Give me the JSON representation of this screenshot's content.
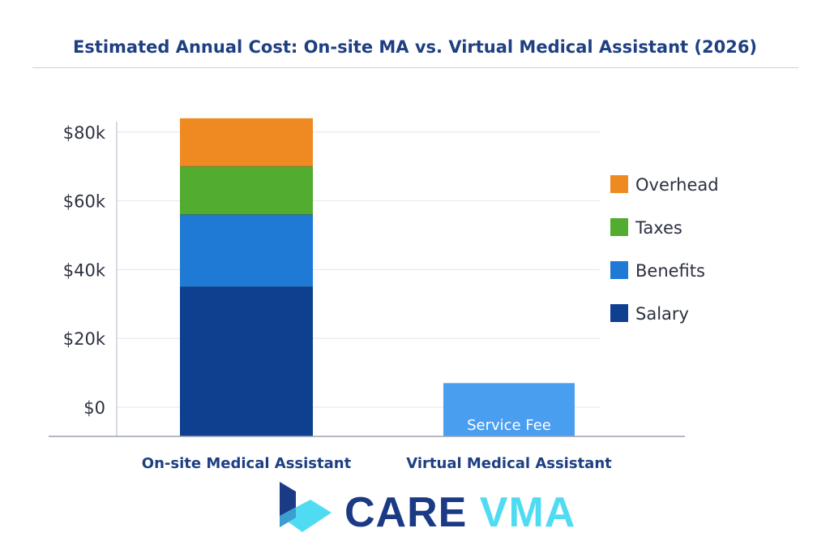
{
  "chart_data": {
    "type": "bar",
    "stacked": true,
    "title": "Estimated Annual Cost: On-site MA vs. Virtual Medical Assistant (2026)",
    "xlabel": "",
    "ylabel": "",
    "categories": [
      "On-site Medical Assistant",
      "Virtual Medical Assistant"
    ],
    "yticks": [
      "$0",
      "$20k",
      "$40k",
      "$60k",
      "$80k"
    ],
    "ytick_values": [
      0,
      20000,
      40000,
      60000,
      80000
    ],
    "ylim": [
      0,
      85000
    ],
    "grid": true,
    "legend_placement": "right",
    "series": [
      {
        "name": "Salary",
        "values": [
          35000,
          0
        ],
        "color": "#0f3f8f"
      },
      {
        "name": "Benefits",
        "values": [
          21000,
          0
        ],
        "color": "#1f7ad6"
      },
      {
        "name": "Taxes",
        "values": [
          14000,
          0
        ],
        "color": "#52ac30"
      },
      {
        "name": "Overhead",
        "values": [
          14000,
          0
        ],
        "color": "#ef8a22"
      },
      {
        "name": "Service Fee",
        "values": [
          0,
          7000
        ],
        "color": "#4a9ef0",
        "label": "Service Fee"
      }
    ],
    "legend": [
      "Overhead",
      "Taxes",
      "Benefits",
      "Salary"
    ]
  },
  "logo": {
    "text_primary": "CARE",
    "text_secondary": "VMA",
    "primary_color": "#1b3a86",
    "secondary_color": "#4fdcf2"
  }
}
